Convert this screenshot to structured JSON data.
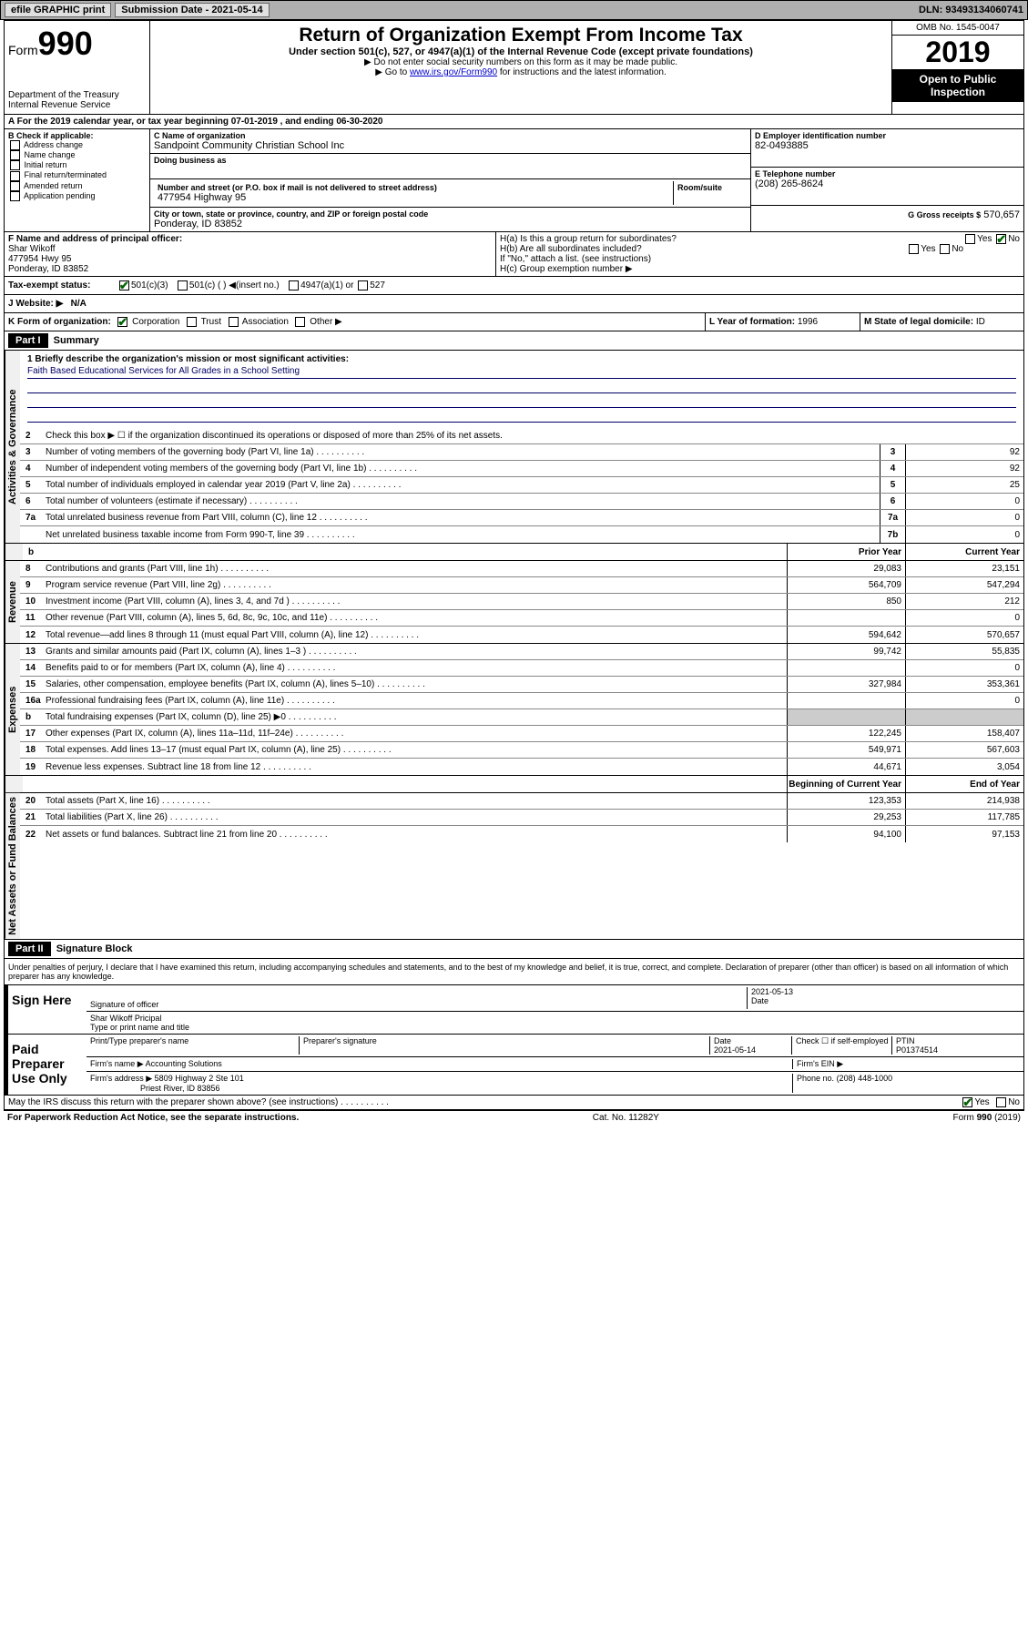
{
  "topbar": {
    "efile": "efile GRAPHIC print",
    "submission": "Submission Date - 2021-05-14",
    "dln": "DLN: 93493134060741"
  },
  "header": {
    "form_label": "Form",
    "form_num": "990",
    "dept": "Department of the Treasury\nInternal Revenue Service",
    "title": "Return of Organization Exempt From Income Tax",
    "subtitle": "Under section 501(c), 527, or 4947(a)(1) of the Internal Revenue Code (except private foundations)",
    "instr1": "▶ Do not enter social security numbers on this form as it may be made public.",
    "instr2_pre": "▶ Go to ",
    "instr2_link": "www.irs.gov/Form990",
    "instr2_post": " for instructions and the latest information.",
    "omb": "OMB No. 1545-0047",
    "year": "2019",
    "open": "Open to Public Inspection"
  },
  "period": "A For the 2019 calendar year, or tax year beginning 07-01-2019    , and ending 06-30-2020",
  "box_b": {
    "hdr": "B Check if applicable:",
    "items": [
      "Address change",
      "Name change",
      "Initial return",
      "Final return/terminated",
      "Amended return",
      "Application pending"
    ]
  },
  "box_c": {
    "label": "C Name of organization",
    "name": "Sandpoint Community Christian School Inc",
    "dba_label": "Doing business as",
    "addr_label": "Number and street (or P.O. box if mail is not delivered to street address)",
    "room_label": "Room/suite",
    "addr": "477954 Highway 95",
    "city_label": "City or town, state or province, country, and ZIP or foreign postal code",
    "city": "Ponderay, ID 83852"
  },
  "box_d": {
    "label": "D Employer identification number",
    "val": "82-0493885"
  },
  "box_e": {
    "label": "E Telephone number",
    "val": "(208) 265-8624"
  },
  "box_g": {
    "label": "G Gross receipts $",
    "val": "570,657"
  },
  "box_f": {
    "label": "F  Name and address of principal officer:",
    "name": "Shar Wikoff",
    "addr1": "477954 Hwy 95",
    "addr2": "Ponderay, ID  83852"
  },
  "box_h": {
    "ha": "H(a)  Is this a group return for subordinates?",
    "hb": "H(b)  Are all subordinates included?",
    "hb_note": "If \"No,\" attach a list. (see instructions)",
    "hc": "H(c)  Group exemption number ▶"
  },
  "tax_status": {
    "label": "Tax-exempt status:",
    "opt1": "501(c)(3)",
    "opt2": "501(c) (  ) ◀(insert no.)",
    "opt3": "4947(a)(1) or",
    "opt4": "527"
  },
  "website": {
    "label": "J   Website: ▶",
    "val": "N/A"
  },
  "box_k": "K Form of organization:",
  "k_opts": [
    "Corporation",
    "Trust",
    "Association",
    "Other ▶"
  ],
  "box_l": {
    "label": "L Year of formation:",
    "val": "1996"
  },
  "box_m": {
    "label": "M State of legal domicile:",
    "val": "ID"
  },
  "part1": {
    "hdr": "Part I",
    "title": "Summary",
    "q1": "1  Briefly describe the organization's mission or most significant activities:",
    "mission": "Faith Based Educational Services for All Grades in a School Setting",
    "q2": "Check this box ▶ ☐  if the organization discontinued its operations or disposed of more than 25% of its net assets.",
    "tabs": {
      "gov": "Activities & Governance",
      "rev": "Revenue",
      "exp": "Expenses",
      "net": "Net Assets or Fund Balances"
    },
    "lines_gov": [
      {
        "n": "3",
        "t": "Number of voting members of the governing body (Part VI, line 1a)",
        "b": "3",
        "v": "92"
      },
      {
        "n": "4",
        "t": "Number of independent voting members of the governing body (Part VI, line 1b)",
        "b": "4",
        "v": "92"
      },
      {
        "n": "5",
        "t": "Total number of individuals employed in calendar year 2019 (Part V, line 2a)",
        "b": "5",
        "v": "25"
      },
      {
        "n": "6",
        "t": "Total number of volunteers (estimate if necessary)",
        "b": "6",
        "v": "0"
      },
      {
        "n": "7a",
        "t": "Total unrelated business revenue from Part VIII, column (C), line 12",
        "b": "7a",
        "v": "0"
      },
      {
        "n": "",
        "t": "Net unrelated business taxable income from Form 990-T, line 39",
        "b": "7b",
        "v": "0"
      }
    ],
    "col_prior": "Prior Year",
    "col_current": "Current Year",
    "lines_rev": [
      {
        "n": "8",
        "t": "Contributions and grants (Part VIII, line 1h)",
        "p": "29,083",
        "c": "23,151"
      },
      {
        "n": "9",
        "t": "Program service revenue (Part VIII, line 2g)",
        "p": "564,709",
        "c": "547,294"
      },
      {
        "n": "10",
        "t": "Investment income (Part VIII, column (A), lines 3, 4, and 7d )",
        "p": "850",
        "c": "212"
      },
      {
        "n": "11",
        "t": "Other revenue (Part VIII, column (A), lines 5, 6d, 8c, 9c, 10c, and 11e)",
        "p": "",
        "c": "0"
      },
      {
        "n": "12",
        "t": "Total revenue—add lines 8 through 11 (must equal Part VIII, column (A), line 12)",
        "p": "594,642",
        "c": "570,657"
      }
    ],
    "lines_exp": [
      {
        "n": "13",
        "t": "Grants and similar amounts paid (Part IX, column (A), lines 1–3 )",
        "p": "99,742",
        "c": "55,835"
      },
      {
        "n": "14",
        "t": "Benefits paid to or for members (Part IX, column (A), line 4)",
        "p": "",
        "c": "0"
      },
      {
        "n": "15",
        "t": "Salaries, other compensation, employee benefits (Part IX, column (A), lines 5–10)",
        "p": "327,984",
        "c": "353,361"
      },
      {
        "n": "16a",
        "t": "Professional fundraising fees (Part IX, column (A), line 11e)",
        "p": "",
        "c": "0"
      },
      {
        "n": "b",
        "t": "Total fundraising expenses (Part IX, column (D), line 25) ▶0",
        "p": null,
        "c": null
      },
      {
        "n": "17",
        "t": "Other expenses (Part IX, column (A), lines 11a–11d, 11f–24e)",
        "p": "122,245",
        "c": "158,407"
      },
      {
        "n": "18",
        "t": "Total expenses. Add lines 13–17 (must equal Part IX, column (A), line 25)",
        "p": "549,971",
        "c": "567,603"
      },
      {
        "n": "19",
        "t": "Revenue less expenses. Subtract line 18 from line 12",
        "p": "44,671",
        "c": "3,054"
      }
    ],
    "col_begin": "Beginning of Current Year",
    "col_end": "End of Year",
    "lines_net": [
      {
        "n": "20",
        "t": "Total assets (Part X, line 16)",
        "p": "123,353",
        "c": "214,938"
      },
      {
        "n": "21",
        "t": "Total liabilities (Part X, line 26)",
        "p": "29,253",
        "c": "117,785"
      },
      {
        "n": "22",
        "t": "Net assets or fund balances. Subtract line 21 from line 20",
        "p": "94,100",
        "c": "97,153"
      }
    ]
  },
  "part2": {
    "hdr": "Part II",
    "title": "Signature Block",
    "decl": "Under penalties of perjury, I declare that I have examined this return, including accompanying schedules and statements, and to the best of my knowledge and belief, it is true, correct, and complete. Declaration of preparer (other than officer) is based on all information of which preparer has any knowledge.",
    "sign_here": "Sign Here",
    "sig_officer": "Signature of officer",
    "sig_date": "2021-05-13",
    "sig_date_label": "Date",
    "sig_name": "Shar Wikoff Pricipal",
    "sig_name_label": "Type or print name and title",
    "paid": "Paid Preparer Use Only",
    "prep_name_label": "Print/Type preparer's name",
    "prep_sig_label": "Preparer's signature",
    "prep_date_label": "Date",
    "prep_date": "2021-05-14",
    "prep_check": "Check ☐ if self-employed",
    "ptin_label": "PTIN",
    "ptin": "P01374514",
    "firm_name_label": "Firm's name    ▶",
    "firm_name": "Accounting Solutions",
    "firm_ein_label": "Firm's EIN ▶",
    "firm_addr_label": "Firm's address ▶",
    "firm_addr": "5809 Highway 2 Ste 101",
    "firm_city": "Priest River, ID  83856",
    "firm_phone_label": "Phone no.",
    "firm_phone": "(208) 448-1000",
    "discuss": "May the IRS discuss this return with the preparer shown above? (see instructions)"
  },
  "footer": {
    "left": "For Paperwork Reduction Act Notice, see the separate instructions.",
    "mid": "Cat. No. 11282Y",
    "right": "Form 990 (2019)"
  }
}
